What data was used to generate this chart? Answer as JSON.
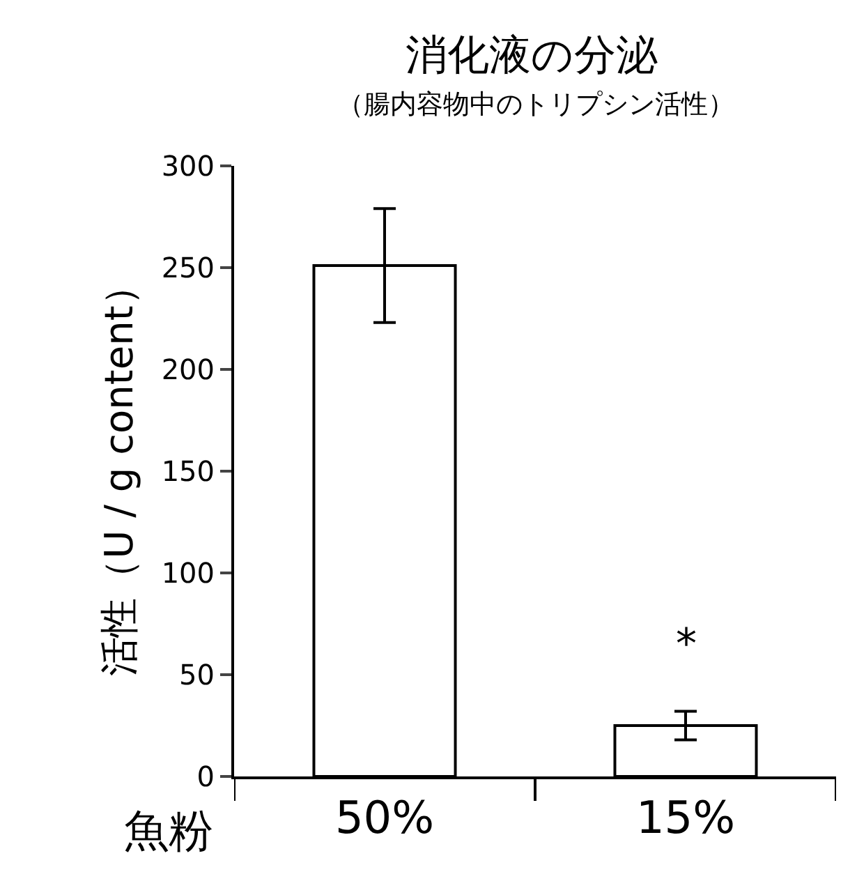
{
  "chart_data": {
    "type": "bar",
    "title": "消化液の分泌",
    "subtitle": "（腸内容物中のトリプシン活性）",
    "ylabel": "活性（U / g content）",
    "xlabel": "魚粉",
    "categories": [
      "50%",
      "15%"
    ],
    "series": [
      {
        "color": "#ffffff",
        "values": [
          251,
          25
        ],
        "errors": [
          [
            223,
            279
          ],
          [
            18,
            32
          ]
        ]
      }
    ],
    "ylim": [
      0,
      300
    ],
    "yticks": [
      0,
      50,
      100,
      150,
      200,
      250,
      300
    ],
    "annotations": [
      "*"
    ]
  }
}
